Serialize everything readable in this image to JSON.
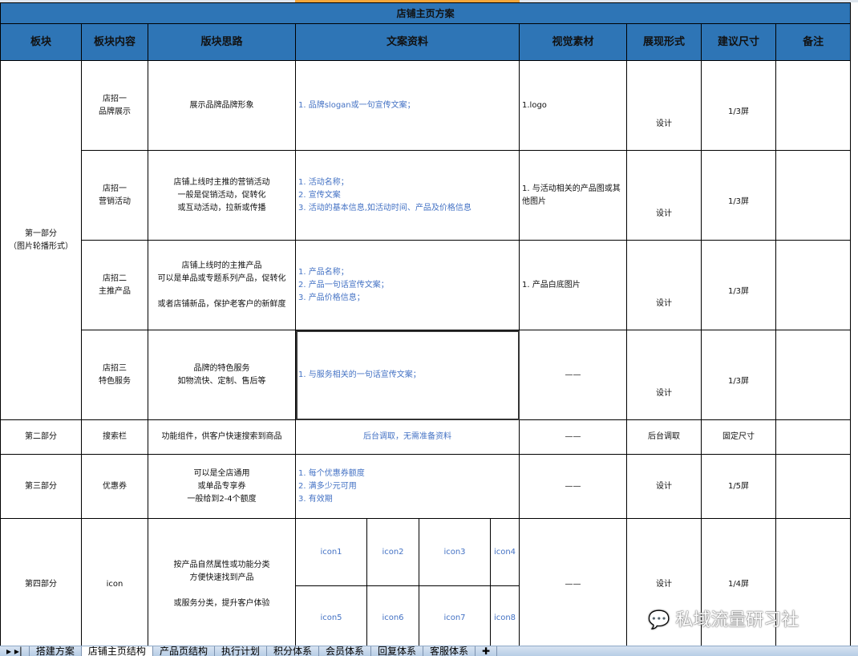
{
  "title": "店铺主页方案",
  "headers": [
    "板块",
    "板块内容",
    "版块思路",
    "文案资料",
    "视觉素材",
    "展现形式",
    "建议尺寸",
    "备注"
  ],
  "part1": {
    "label": "第一部分",
    "sub": "（图片轮播形式）",
    "rows": [
      {
        "content": [
          "店招一",
          "品牌展示"
        ],
        "idea": [
          "展示品牌品牌形象"
        ],
        "copy": [
          "1. 品牌slogan或一句宣传文案；"
        ],
        "visual": [
          "1.logo"
        ],
        "form": "设计",
        "size": "1/3屏"
      },
      {
        "content": [
          "店招一",
          "营销活动"
        ],
        "idea": [
          "店铺上线时主推的营销活动",
          "一般是促销活动，促转化",
          "或互动活动，拉新或传播"
        ],
        "copy": [
          "1. 活动名称；",
          "2. 宣传文案",
          "3. 活动的基本信息,如活动时间、产品及价格信息"
        ],
        "visual": [
          "1. 与活动相关的产品图或其",
          "他图片"
        ],
        "form": "设计",
        "size": "1/3屏"
      },
      {
        "content": [
          "店招二",
          "主推产品"
        ],
        "idea": [
          "店铺上线时的主推产品",
          "可以是单品或专题系列产品，促转化",
          "",
          "或者店铺新品，保护老客户的新鲜度"
        ],
        "copy": [
          "1. 产品名称；",
          "2. 产品一句话宣传文案；",
          "3. 产品价格信息；"
        ],
        "visual": [
          "1. 产品白底图片"
        ],
        "form": "设计",
        "size": "1/3屏"
      },
      {
        "content": [
          "店招三",
          "特色服务"
        ],
        "idea": [
          "品牌的特色服务",
          "如物流快、定制、售后等"
        ],
        "copy": [
          "1. 与服务相关的一句话宣传文案；"
        ],
        "visual": [
          "——"
        ],
        "form": "设计",
        "size": "1/3屏"
      }
    ]
  },
  "part2": {
    "label": "第二部分",
    "content": "搜索栏",
    "idea": "功能组件，供客户快速搜索到商品",
    "copy": "后台调取，无需准备资料",
    "visual": "——",
    "form": "后台调取",
    "size": "固定尺寸"
  },
  "part3": {
    "label": "第三部分",
    "content": "优惠券",
    "idea": [
      "可以是全店通用",
      "或单品专享券",
      "一般给到2-4个额度"
    ],
    "copy": [
      "1. 每个优惠券额度",
      "2. 满多少元可用",
      "3. 有效期"
    ],
    "visual": "——",
    "form": "设计",
    "size": "1/5屏"
  },
  "part4": {
    "label": "第四部分",
    "content": "icon",
    "idea": [
      "按产品自然属性或功能分类",
      "方便快速找到产品",
      "",
      "或服务分类，提升客户体验"
    ],
    "icons": [
      "icon1",
      "icon2",
      "icon3",
      "icon4",
      "icon5",
      "icon6",
      "icon7",
      "icon8"
    ],
    "visual": "——",
    "form": "设计",
    "size": "1/4屏"
  },
  "tabs": [
    "搭建方案",
    "店铺主页结构",
    "产品页结构",
    "执行计划",
    "积分体系",
    "会员体系",
    "回复体系",
    "客服体系"
  ],
  "active_tab": "店铺主页结构",
  "watermark": "私域流量研习社"
}
